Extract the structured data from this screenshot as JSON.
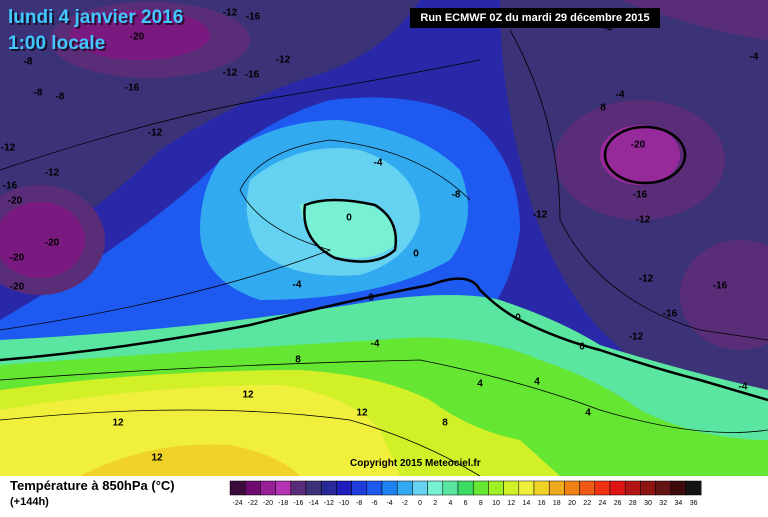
{
  "header": {
    "date": "lundi 4 janvier 2016",
    "time": "1:00 locale",
    "run": "Run ECMWF 0Z du mardi 29 décembre 2015"
  },
  "copyright": "Copyright 2015 Meteociel.fr",
  "footer": {
    "title": "Température à 850hPa (°C)",
    "lead": "(+144h)"
  },
  "colorbar": {
    "ticks": [
      -24,
      -22,
      -20,
      -18,
      -16,
      -14,
      -12,
      -10,
      -8,
      -6,
      -4,
      -2,
      0,
      2,
      4,
      6,
      8,
      10,
      12,
      14,
      16,
      18,
      20,
      22,
      24,
      26,
      28,
      30,
      32,
      34,
      36
    ],
    "colors": [
      "#3c0a3c",
      "#6e0a6e",
      "#961e96",
      "#b432b4",
      "#5a2d78",
      "#3c3278",
      "#282896",
      "#1e1ebe",
      "#1e3cdc",
      "#1e5af0",
      "#1e82f0",
      "#32aaf0",
      "#64d2f0",
      "#78f0d2",
      "#5ae6a0",
      "#3cdc64",
      "#64e632",
      "#a0f028",
      "#d2f028",
      "#f0f03c",
      "#f0d228",
      "#f0aa1e",
      "#f08214",
      "#f05a14",
      "#f03214",
      "#dc1414",
      "#b41414",
      "#8c1414",
      "#641414",
      "#3c0a0a",
      "#141414"
    ]
  },
  "contour_labels": [
    -12,
    -16,
    -20,
    -8,
    -8,
    -8,
    -12,
    -16,
    -12,
    -16,
    -12,
    -12,
    -12,
    -16,
    -20,
    -20,
    -20,
    -20,
    -4,
    -8,
    0,
    0,
    -4,
    0,
    -4,
    8,
    4,
    12,
    12,
    8,
    12,
    12,
    4,
    4,
    -20,
    8,
    -4,
    -16,
    -12,
    -12,
    -12,
    -16,
    -16,
    -12,
    0,
    0,
    -4,
    -4,
    -8
  ]
}
